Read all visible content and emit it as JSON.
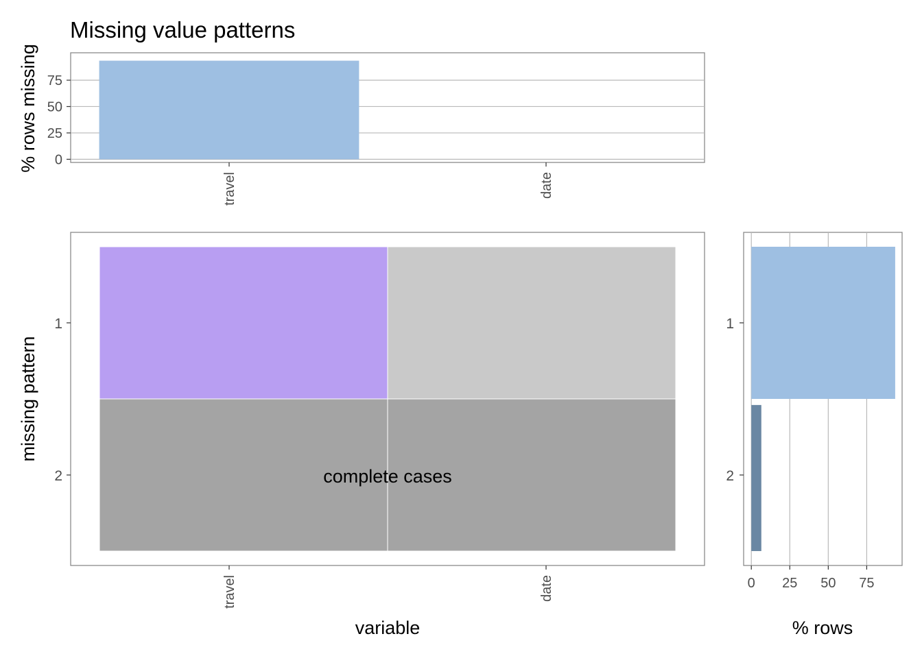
{
  "title": "Missing value patterns",
  "colors": {
    "bar_fill": "#9ebfe2",
    "bar_fill_dark": "#6a87a3",
    "missing_cell": "#b89ef2",
    "present_cell": "#c9c9c9",
    "complete_cell": "#a4a4a4",
    "grid": "#b9b9b9",
    "panel_border": "#8a8a8a",
    "text": "#000000",
    "tick_text": "#4d4d4d"
  },
  "chart_data": [
    {
      "type": "bar",
      "panel": "top",
      "categories": [
        "travel",
        "date"
      ],
      "values": [
        93.5,
        0
      ],
      "ylabel": "% rows missing",
      "xlabel": "",
      "yticks": [
        0,
        25,
        50,
        75
      ],
      "ylim": [
        -3,
        101
      ],
      "grid": true
    },
    {
      "type": "heatmap",
      "panel": "main",
      "columns": [
        "travel",
        "date"
      ],
      "patterns": [
        {
          "label": "1",
          "cells": [
            "missing",
            "present"
          ]
        },
        {
          "label": "2",
          "cells": [
            "complete",
            "complete"
          ]
        }
      ],
      "annotation": "complete cases",
      "xlabel": "variable",
      "ylabel": "missing pattern",
      "grid": false
    },
    {
      "type": "bar",
      "orientation": "horizontal",
      "panel": "right",
      "categories": [
        "1",
        "2"
      ],
      "values": [
        93.5,
        6.5
      ],
      "xlabel": "% rows",
      "xticks": [
        0,
        25,
        50,
        75
      ],
      "xlim": [
        -5,
        98
      ],
      "grid": true
    }
  ]
}
